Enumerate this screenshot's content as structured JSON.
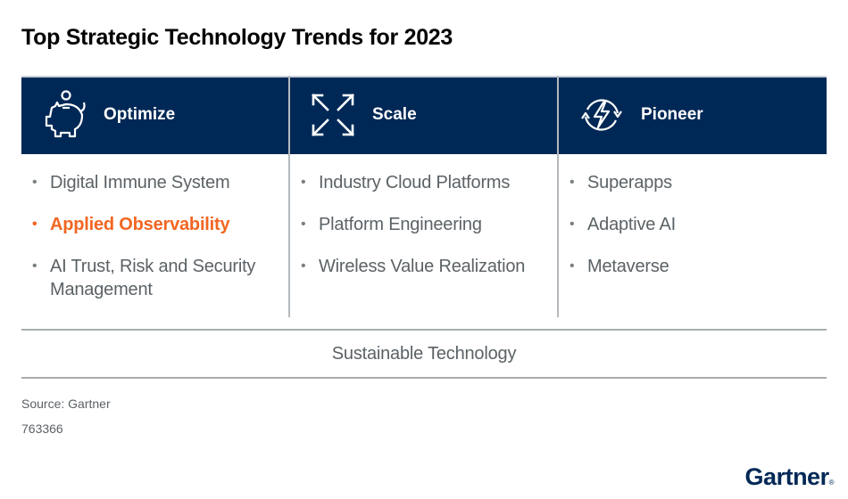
{
  "title": "Top Strategic Technology Trends for 2023",
  "colors": {
    "band": "#002856",
    "highlight": "#f26622",
    "text": "#5b6266"
  },
  "columns": [
    {
      "icon": "piggy-bank-icon",
      "label": "Optimize",
      "items": [
        {
          "text": "Digital Immune System",
          "highlight": false
        },
        {
          "text": "Applied Observability",
          "highlight": true
        },
        {
          "text": "AI Trust, Risk and Security Management",
          "highlight": false
        }
      ]
    },
    {
      "icon": "expand-arrows-icon",
      "label": "Scale",
      "items": [
        {
          "text": "Industry Cloud Platforms",
          "highlight": false
        },
        {
          "text": "Platform Engineering",
          "highlight": false
        },
        {
          "text": "Wireless Value Realization",
          "highlight": false
        }
      ]
    },
    {
      "icon": "refresh-lightning-icon",
      "label": "Pioneer",
      "items": [
        {
          "text": "Superapps",
          "highlight": false
        },
        {
          "text": "Adaptive AI",
          "highlight": false
        },
        {
          "text": "Metaverse",
          "highlight": false
        }
      ]
    }
  ],
  "footer_band": "Sustainable Technology",
  "source": "Source: Gartner",
  "doc_id": "763366",
  "logo": "Gartner"
}
